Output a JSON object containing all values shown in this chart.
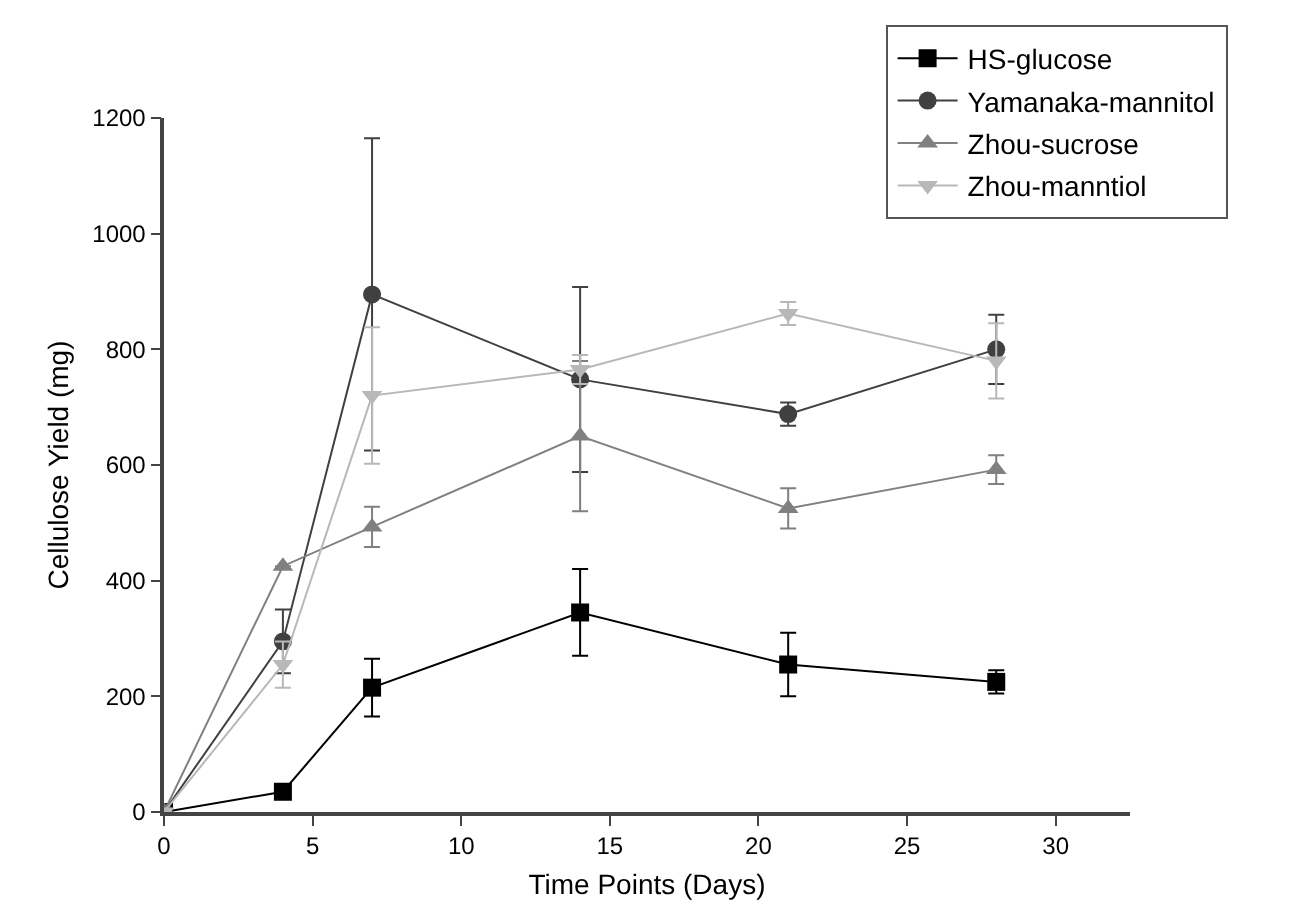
{
  "chart_data": {
    "type": "line",
    "xlabel": "Time Points (Days)",
    "ylabel": "Cellulose Yield (mg)",
    "x": [
      0,
      4,
      7,
      14,
      21,
      28
    ],
    "xlim": [
      0,
      32.5
    ],
    "xticks": [
      0,
      5,
      10,
      15,
      20,
      25,
      30
    ],
    "ylim": [
      0,
      1200
    ],
    "yticks": [
      0,
      200,
      400,
      600,
      800,
      1000,
      1200
    ],
    "grid": false,
    "legend": "top right",
    "line_style": "solid",
    "series": [
      {
        "name": "HS-glucose",
        "color": "#000000",
        "marker": "square",
        "values": [
          0,
          35,
          215,
          345,
          255,
          225
        ],
        "errors": [
          null,
          null,
          50,
          75,
          55,
          20
        ]
      },
      {
        "name": "Yamanaka-mannitol",
        "color": "#404040",
        "marker": "circle",
        "values": [
          0,
          295,
          895,
          748,
          688,
          800
        ],
        "errors": [
          null,
          55,
          270,
          160,
          20,
          60
        ]
      },
      {
        "name": "Zhou-sucrose",
        "color": "#808080",
        "marker": "triangle",
        "values": [
          0,
          425,
          493,
          650,
          525,
          592
        ],
        "errors": [
          null,
          null,
          35,
          130,
          35,
          25
        ]
      },
      {
        "name": "Zhou-manntiol",
        "color": "#b8b8b8",
        "marker": "triangle-down",
        "values": [
          0,
          255,
          720,
          765,
          862,
          780
        ],
        "errors": [
          null,
          40,
          118,
          25,
          20,
          65
        ]
      }
    ]
  }
}
